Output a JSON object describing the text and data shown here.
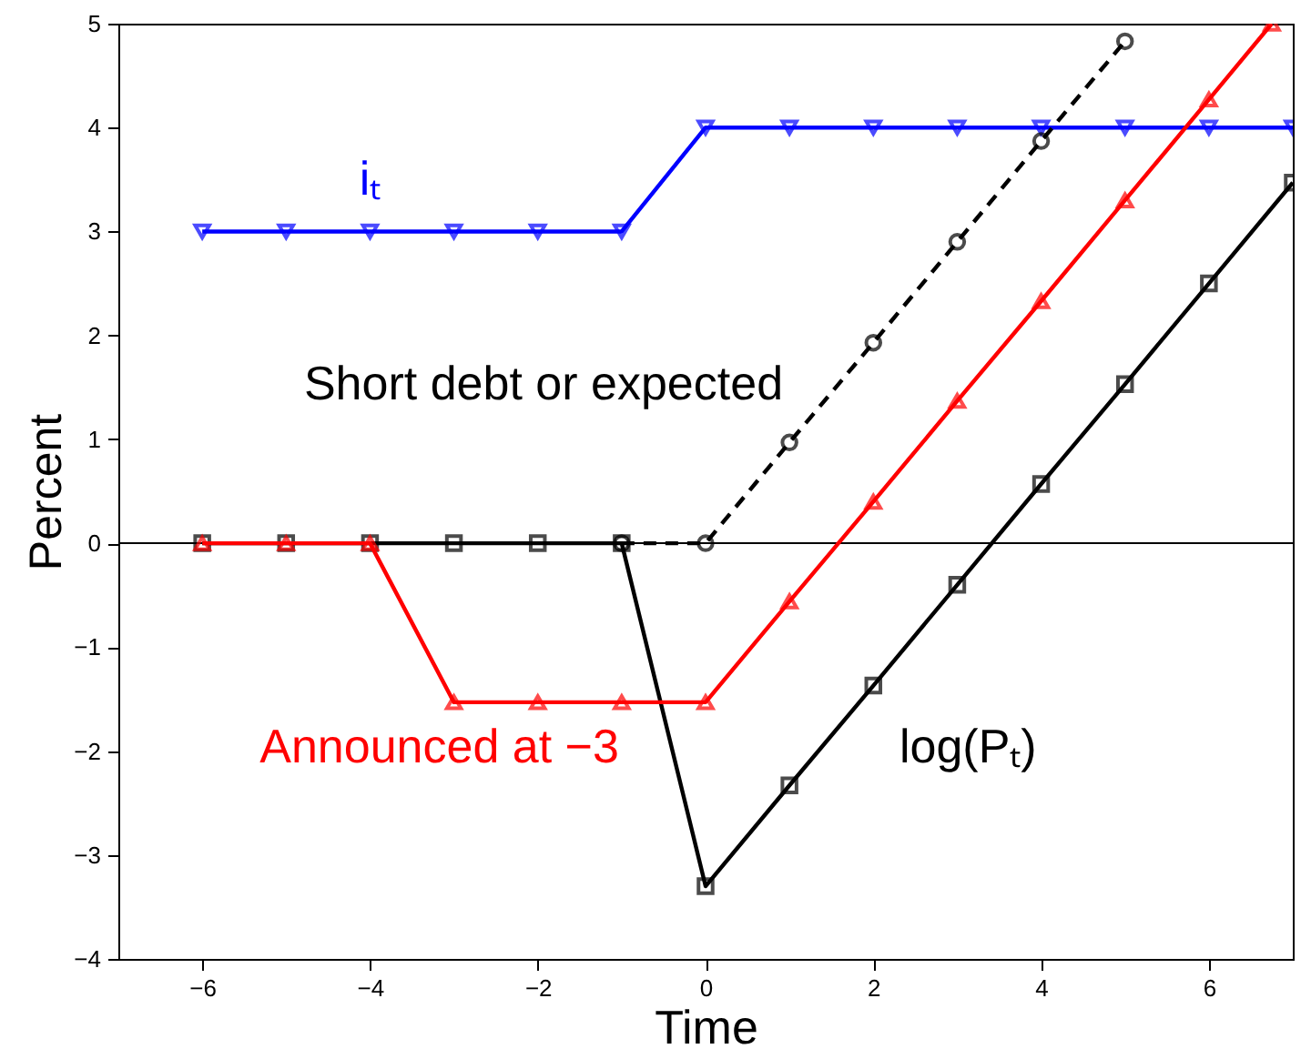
{
  "chart_data": {
    "type": "line",
    "xlabel": "Time",
    "ylabel": "Percent",
    "xlim": [
      -7,
      7
    ],
    "ylim": [
      -4,
      5
    ],
    "xticks": [
      -6,
      -4,
      -2,
      0,
      2,
      4,
      6
    ],
    "yticks": [
      -4,
      -3,
      -2,
      -1,
      0,
      1,
      2,
      3,
      4,
      5
    ],
    "ref_lines": [
      {
        "axis": "y",
        "value": 0,
        "color": "#000000"
      }
    ],
    "series": [
      {
        "name": "iₜ",
        "color": "#0000ff",
        "marker": "triangle-down",
        "line_style": "solid",
        "x": [
          -6,
          -5,
          -4,
          -3,
          -2,
          -1,
          0,
          1,
          2,
          3,
          4,
          5,
          6,
          7
        ],
        "values": [
          3,
          3,
          3,
          3,
          3,
          3,
          4,
          4,
          4,
          4,
          4,
          4,
          4,
          4
        ]
      },
      {
        "name": "log(Pₜ)",
        "color": "#000000",
        "marker": "square",
        "line_style": "solid",
        "x": [
          -6,
          -5,
          -4,
          -3,
          -2,
          -1,
          0,
          1,
          2,
          3,
          4,
          5,
          6,
          7
        ],
        "values": [
          0,
          0,
          0,
          0,
          0,
          0,
          -3.3,
          -2.33,
          -1.37,
          -0.4,
          0.57,
          1.53,
          2.5,
          3.47
        ]
      },
      {
        "name": "Short debt or expected",
        "color": "#000000",
        "marker": "circle",
        "line_style": "dashed",
        "x": [
          -1,
          0,
          1,
          2,
          3,
          4,
          5
        ],
        "values": [
          0,
          0,
          0.97,
          1.93,
          2.9,
          3.87,
          4.83
        ]
      },
      {
        "name": "Announced at −3",
        "color": "#ff0000",
        "marker": "triangle",
        "line_style": "solid",
        "x": [
          -6,
          -5,
          -4,
          -3,
          -2,
          -1,
          0,
          1,
          2,
          3,
          4,
          5,
          6,
          6.75
        ],
        "values": [
          0,
          0,
          0,
          -1.53,
          -1.53,
          -1.53,
          -1.53,
          -0.56,
          0.4,
          1.37,
          2.33,
          3.3,
          4.27,
          5
        ]
      }
    ]
  }
}
